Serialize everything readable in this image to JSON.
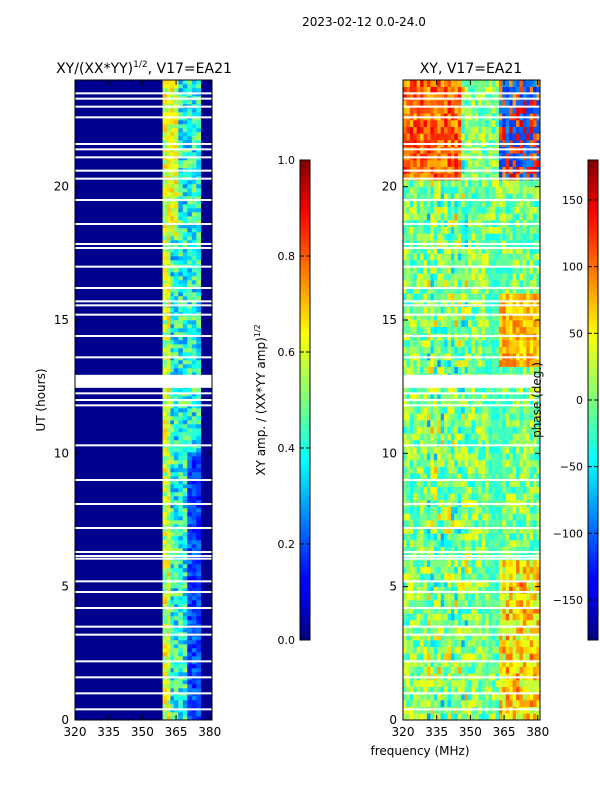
{
  "suptitle": "2023-02-12 0.0-24.0",
  "chart_data": [
    {
      "type": "heatmap",
      "title_main": "XY/(XX*YY)",
      "title_exp": "1/2",
      "title_rest": ", V17=EA21",
      "xlabel": "",
      "ylabel": "UT (hours)",
      "xlim": [
        320,
        381
      ],
      "ylim": [
        0,
        24
      ],
      "xticks": [
        "320",
        "335",
        "350",
        "365",
        "380"
      ],
      "xtick_values": [
        320,
        335,
        350,
        365,
        380
      ],
      "yticks": [
        "0",
        "5",
        "10",
        "15",
        "20"
      ],
      "ytick_values": [
        0,
        5,
        10,
        15,
        20
      ],
      "colorbar": {
        "label_main": "XY amp. / (XX*YY amp)",
        "label_exp": "1/2",
        "range": [
          0.0,
          1.0
        ],
        "ticks": [
          "0.0",
          "0.2",
          "0.4",
          "0.6",
          "0.8",
          "1.0"
        ],
        "tick_values": [
          0.0,
          0.2,
          0.4,
          0.6,
          0.8,
          1.0
        ]
      },
      "description": "Low (~0.05) normalized amplitude over 320-359 MHz; elevated 0.3-0.7 over 359-377 MHz; data gaps (white rows) near 12.6-13.0 h and 6.0-6.3 h"
    },
    {
      "type": "heatmap",
      "title": "XY, V17=EA21",
      "xlabel": "frequency (MHz)",
      "ylabel": "",
      "xlim": [
        320,
        381
      ],
      "ylim": [
        0,
        24
      ],
      "xticks": [
        "320",
        "335",
        "350",
        "365",
        "380"
      ],
      "xtick_values": [
        320,
        335,
        350,
        365,
        380
      ],
      "yticks": [
        "0",
        "5",
        "10",
        "15",
        "20"
      ],
      "ytick_values": [
        0,
        5,
        10,
        15,
        20
      ],
      "colorbar": {
        "label": "phase (deg.)",
        "range": [
          -180,
          180
        ],
        "ticks": [
          "−150",
          "−100",
          "−50",
          "0",
          "50",
          "100",
          "150"
        ],
        "tick_values": [
          -150,
          -100,
          -50,
          0,
          50,
          100,
          150
        ]
      },
      "description": "Noisy phase with values mostly between -60 and 60 deg; large positive phases at 320-345 MHz after 20 h; coherent structure near 335 MHz and 357-365 MHz"
    }
  ]
}
